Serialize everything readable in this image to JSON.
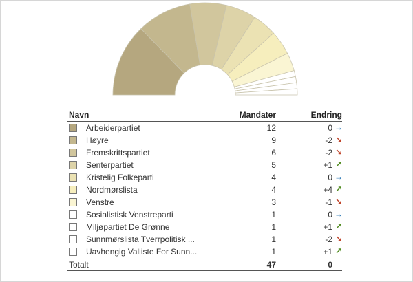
{
  "table": {
    "header_name": "Navn",
    "header_seats": "Mandater",
    "header_change": "Endring",
    "parties": [
      {
        "name": "Arbeiderpartiet",
        "seats": 12,
        "change": "0",
        "trend": "same",
        "color": "#b5a77f"
      },
      {
        "name": "Høyre",
        "seats": 9,
        "change": "-2",
        "trend": "down",
        "color": "#c3b78e"
      },
      {
        "name": "Fremskrittspartiet",
        "seats": 6,
        "change": "-2",
        "trend": "down",
        "color": "#d1c69d"
      },
      {
        "name": "Senterpartiet",
        "seats": 5,
        "change": "+1",
        "trend": "up",
        "color": "#ddd3a8"
      },
      {
        "name": "Kristelig Folkeparti",
        "seats": 4,
        "change": "0",
        "trend": "same",
        "color": "#ebe2b3"
      },
      {
        "name": "Nordmørslista",
        "seats": 4,
        "change": "+4",
        "trend": "up",
        "color": "#f6eebd"
      },
      {
        "name": "Venstre",
        "seats": 3,
        "change": "-1",
        "trend": "down",
        "color": "#faf5d3"
      },
      {
        "name": "Sosialistisk Venstreparti",
        "seats": 1,
        "change": "0",
        "trend": "same",
        "color": "#ffffff"
      },
      {
        "name": "Miljøpartiet De Grønne",
        "seats": 1,
        "change": "+1",
        "trend": "up",
        "color": "#ffffff"
      },
      {
        "name": "Sunnmørslista Tverrpolitisk ...",
        "seats": 1,
        "change": "-2",
        "trend": "down",
        "color": "#ffffff"
      },
      {
        "name": "Uavhengig Valliste For Sunn...",
        "seats": 1,
        "change": "+1",
        "trend": "up",
        "color": "#ffffff"
      }
    ],
    "total_label": "Totalt",
    "total_seats": 47,
    "total_change": "0"
  },
  "trend_icons": {
    "up": "arrow-up-right-icon",
    "down": "arrow-down-right-icon",
    "same": "arrow-right-icon"
  }
}
